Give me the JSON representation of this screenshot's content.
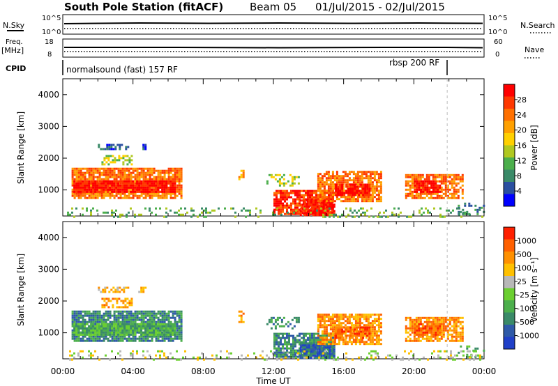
{
  "header": {
    "station": "South Pole Station (fitACF)",
    "beam": "Beam 05",
    "date_range": "01/Jul/2015 - 02/Jul/2015"
  },
  "labels": {
    "nsky": "N.Sky",
    "nsearch": "N.Search",
    "freq_line1": "Freq.",
    "freq_line2": "[MHz]",
    "nave": "Nave",
    "cpid": "CPID",
    "cpid_left": "normalsound (fast) 157 RF",
    "cpid_right": "rbsp 200 RF",
    "nsky_top": "10^5",
    "nsky_bottom": "10^0",
    "nsearch_top": "10^5",
    "nsearch_bottom": "10^0",
    "freq_top": "18",
    "freq_bottom": "8",
    "nave_top": "60",
    "nave_bottom": "0"
  },
  "colors": {
    "power_scale": [
      "#0000ff",
      "#2a4fa0",
      "#3a8a68",
      "#4caf4c",
      "#b0c820",
      "#ffd000",
      "#ffa000",
      "#ff7000",
      "#ff3800",
      "#ff0000"
    ],
    "velocity_scale": [
      "#2040c8",
      "#2f5aa8",
      "#3a8a68",
      "#4caf4c",
      "#6bcf30",
      "#b8b8b8",
      "#ffc000",
      "#ff9000",
      "#ff6000",
      "#ff2000"
    ]
  },
  "chart_data": [
    {
      "type": "heatmap",
      "name": "power",
      "ylabel": "Slant Range [km]",
      "xlabel": "",
      "colorbar_label": "Power [dB]",
      "colorbar_ticks": [
        "4",
        "8",
        "12",
        "16",
        "20",
        "24",
        "28"
      ],
      "colorbar_range": [
        0,
        32
      ],
      "ylim": [
        180,
        4500
      ],
      "xlim_hours": [
        0,
        24
      ],
      "x_ticks": [
        "00:00",
        "04:00",
        "08:00",
        "12:00",
        "16:00",
        "20:00",
        "00:00"
      ],
      "y_ticks": [
        "1000",
        "2000",
        "3000",
        "4000"
      ]
    },
    {
      "type": "heatmap",
      "name": "velocity",
      "ylabel": "Slant Range [km]",
      "xlabel": "Time UT",
      "colorbar_label": "Velocity [m s⁻¹]",
      "colorbar_ticks": [
        "1000",
        "500",
        "100",
        "25",
        "-25",
        "-100",
        "-500",
        "-1000"
      ],
      "ylim": [
        180,
        4500
      ],
      "xlim_hours": [
        0,
        24
      ],
      "x_ticks": [
        "00:00",
        "04:00",
        "08:00",
        "12:00",
        "16:00",
        "20:00",
        "00:00"
      ],
      "y_ticks": [
        "1000",
        "2000",
        "3000",
        "4000"
      ]
    }
  ]
}
